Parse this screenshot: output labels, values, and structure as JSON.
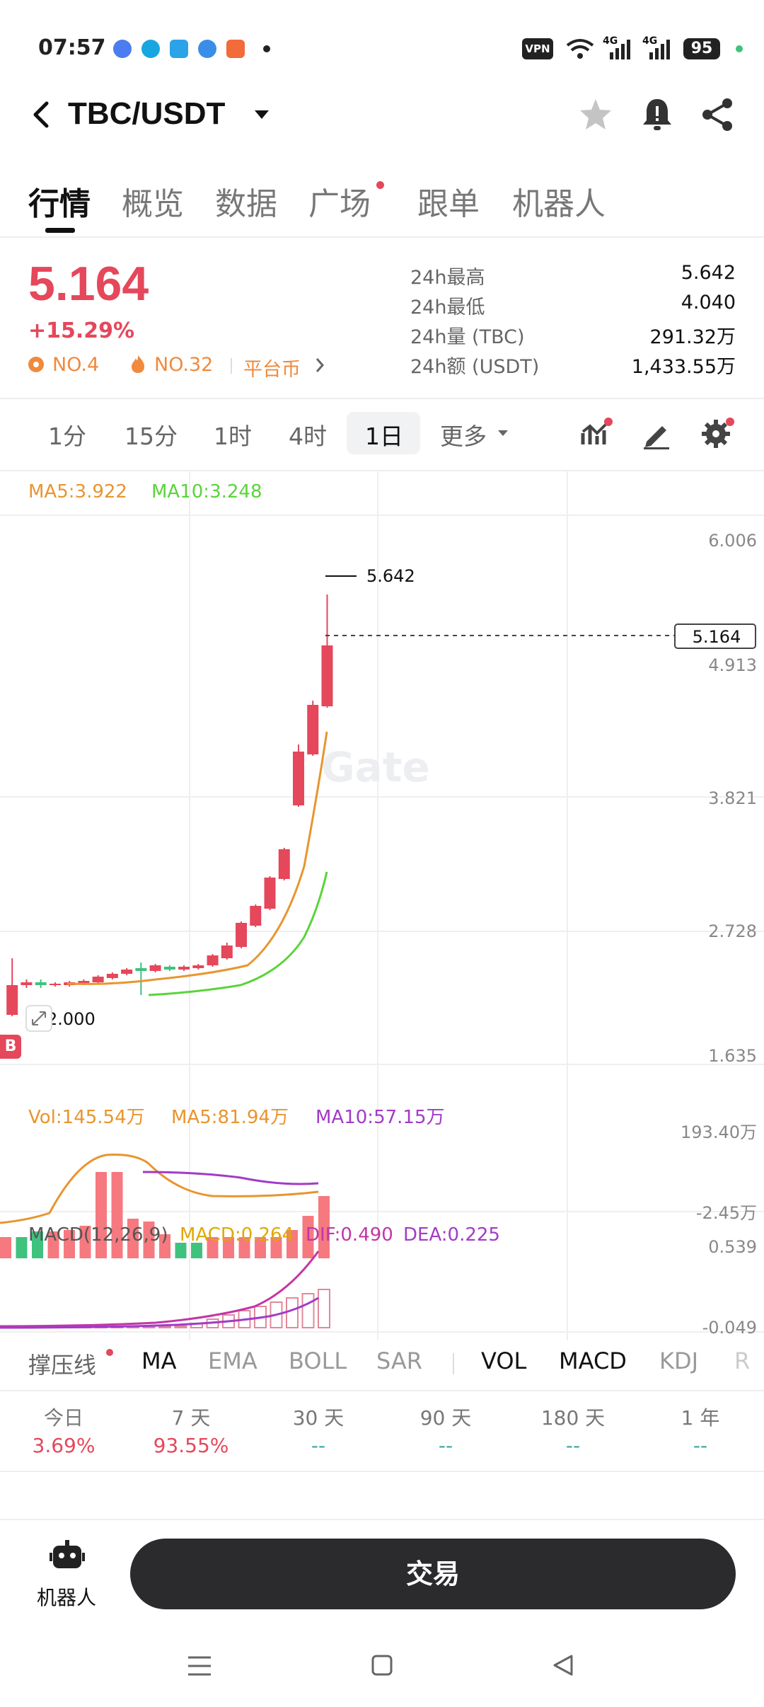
{
  "status_bar": {
    "time": "07:57",
    "vpn": "VPN",
    "network_1": "4G",
    "network_2": "4G",
    "battery": "95"
  },
  "header": {
    "pair": "TBC/USDT"
  },
  "tabs": [
    "行情",
    "概览",
    "数据",
    "广场",
    "跟单",
    "机器人"
  ],
  "price": {
    "last": "5.164",
    "change": "+15.29%",
    "rank_1": "NO.4",
    "rank_2": "NO.32",
    "tag": "平台币"
  },
  "stats": [
    {
      "label": "24h最高",
      "value": "5.642"
    },
    {
      "label": "24h最低",
      "value": "4.040"
    },
    {
      "label": "24h量 (TBC)",
      "value": "291.32万"
    },
    {
      "label": "24h额 (USDT)",
      "value": "1,433.55万"
    }
  ],
  "timeframes": [
    "1分",
    "15分",
    "1时",
    "4时",
    "1日",
    "更多"
  ],
  "ma_legend": {
    "ma5": "MA5:3.922",
    "ma10": "MA10:3.248"
  },
  "watermark": "Gate",
  "price_axis": [
    "6.006",
    "4.913",
    "3.821",
    "2.728",
    "1.635"
  ],
  "price_tag": "5.164",
  "high_label": "5.642",
  "low_label": "2.000",
  "buy_marker": "B",
  "vol_legend": {
    "vol": "Vol:145.54万",
    "ma5": "MA5:81.94万",
    "ma10": "MA10:57.15万"
  },
  "vol_axis": [
    "193.40万",
    "-2.45万"
  ],
  "macd_legend": {
    "label": "MACD(12,26,9)",
    "macd": "MACD:0.264",
    "dif": "DIF:0.490",
    "dea": "DEA:0.225"
  },
  "macd_axis": [
    "0.539",
    "-0.049"
  ],
  "indicators": [
    "撑压线",
    "MA",
    "EMA",
    "BOLL",
    "SAR",
    "VOL",
    "MACD",
    "KDJ",
    "R"
  ],
  "performance": [
    {
      "label": "今日",
      "value": "3.69%"
    },
    {
      "label": "7 天",
      "value": "93.55%"
    },
    {
      "label": "30 天",
      "value": "--"
    },
    {
      "label": "90 天",
      "value": "--"
    },
    {
      "label": "180 天",
      "value": "--"
    },
    {
      "label": "1 年",
      "value": "--"
    }
  ],
  "bottom": {
    "robot_label": "机器人",
    "trade_button": "交易"
  },
  "colors": {
    "up": "#e5475b",
    "down": "#3fc27e",
    "ma5": "#e8952e",
    "ma10": "#5ad43a",
    "ma_vol10": "#a23bc7",
    "accent_orange": "#f08a3c"
  },
  "icons": [
    "back-icon",
    "dropdown-caret-icon",
    "star-icon",
    "bell-icon",
    "share-icon",
    "indicator-icon",
    "draw-icon",
    "settings-icon",
    "expand-icon",
    "robot-icon",
    "menu-icon",
    "home-icon",
    "back-nav-icon"
  ]
}
